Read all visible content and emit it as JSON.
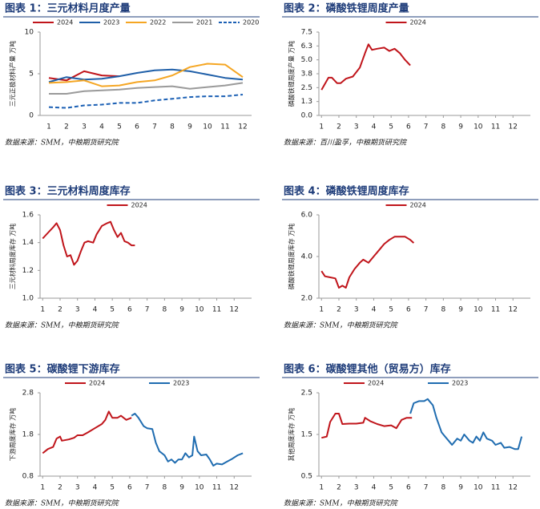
{
  "chart_data": [
    {
      "type": "line",
      "title": "图表 1：三元材料月度产量",
      "y_label": "三元正极材料产量 万吨",
      "source": "数据来源：SMM，中粮期货研究院",
      "legend": "top",
      "categories": [
        "1",
        "2",
        "3",
        "4",
        "5",
        "6",
        "7",
        "8",
        "9",
        "10",
        "11",
        "12"
      ],
      "ylim": [
        0,
        10
      ],
      "yticks": [
        0,
        5,
        10
      ],
      "series": [
        {
          "name": "2024",
          "color": "#c0151b",
          "values": [
            4.5,
            4.2,
            5.3,
            4.8,
            4.7,
            null,
            null,
            null,
            null,
            null,
            null,
            null
          ]
        },
        {
          "name": "2023",
          "color": "#1f5fa8",
          "values": [
            4.0,
            4.6,
            4.3,
            4.4,
            4.7,
            5.1,
            5.4,
            5.5,
            5.3,
            4.9,
            4.5,
            4.3
          ]
        },
        {
          "name": "2022",
          "color": "#f5a623",
          "values": [
            3.9,
            4.0,
            4.2,
            3.5,
            3.6,
            4.0,
            4.2,
            4.8,
            5.8,
            6.2,
            6.1,
            4.6
          ]
        },
        {
          "name": "2021",
          "color": "#9a9a9a",
          "values": [
            2.6,
            2.6,
            2.9,
            3.0,
            3.1,
            3.3,
            3.4,
            3.5,
            3.2,
            3.4,
            3.6,
            3.9
          ]
        },
        {
          "name": "2020",
          "color": "#1a5fb4",
          "style": "dashed",
          "values": [
            1.0,
            0.9,
            1.2,
            1.3,
            1.5,
            1.5,
            1.8,
            2.0,
            2.2,
            2.3,
            2.3,
            2.5
          ]
        }
      ]
    },
    {
      "type": "line",
      "title": "图表 2：磷酸铁锂周度产量",
      "y_label": "磷酸铁锂周度产量 万吨",
      "source": "数据来源：百川盈孚，中粮期货研究院",
      "legend": "top",
      "xlim": [
        0.85,
        13.0
      ],
      "xticks": [
        1,
        2,
        3,
        4,
        5,
        6,
        7,
        8,
        9,
        10,
        11,
        12
      ],
      "ylim": [
        0,
        7.5
      ],
      "yticks": [
        {
          "value": 0,
          "label": "0.0"
        },
        {
          "value": 1.25,
          "label": "1.3"
        },
        2.5,
        {
          "value": 3.75,
          "label": "3.8"
        },
        {
          "value": 5,
          "label": "5.0"
        },
        {
          "value": 6.25,
          "label": "6.3"
        },
        7.5
      ],
      "series": [
        {
          "name": "2024",
          "color": "#c0151b",
          "x": [
            1.0,
            1.4,
            1.6,
            1.9,
            2.1,
            2.4,
            2.8,
            3.2,
            3.5,
            3.7,
            3.9,
            4.2,
            4.6,
            4.9,
            5.2,
            5.5,
            5.8,
            6.1
          ],
          "values": [
            2.3,
            3.4,
            3.4,
            2.9,
            2.9,
            3.3,
            3.5,
            4.3,
            5.6,
            6.4,
            5.9,
            6.0,
            6.1,
            5.8,
            6.0,
            5.6,
            5.0,
            4.5
          ]
        }
      ]
    },
    {
      "type": "line",
      "title": "图表 3：三元材料周度库存",
      "y_label": "三元材料周度库存 万吨",
      "source": "数据来源：SMM，中粮期货研究院",
      "legend": "top",
      "xlim": [
        0.85,
        13.0
      ],
      "xticks": [
        1,
        2,
        3,
        4,
        5,
        6,
        7,
        8,
        9,
        10,
        11,
        12
      ],
      "ylim": [
        1.0,
        1.6
      ],
      "yticks": [
        {
          "value": 1.0,
          "label": "1.0"
        },
        1.2,
        1.4,
        1.6
      ],
      "series": [
        {
          "name": "2024",
          "color": "#c0151b",
          "x": [
            1.0,
            1.3,
            1.6,
            1.8,
            2.0,
            2.2,
            2.4,
            2.6,
            2.8,
            3.0,
            3.2,
            3.4,
            3.6,
            3.9,
            4.1,
            4.4,
            4.7,
            4.9,
            5.1,
            5.3,
            5.5,
            5.7,
            5.9,
            6.1,
            6.3
          ],
          "values": [
            1.43,
            1.47,
            1.51,
            1.54,
            1.49,
            1.38,
            1.3,
            1.31,
            1.24,
            1.27,
            1.34,
            1.4,
            1.41,
            1.4,
            1.46,
            1.52,
            1.54,
            1.55,
            1.49,
            1.44,
            1.47,
            1.41,
            1.4,
            1.38,
            1.38
          ]
        }
      ]
    },
    {
      "type": "line",
      "title": "图表 4：磷酸铁锂周度库存",
      "y_label": "磷酸铁锂周度库存 万吨",
      "source": "数据来源：SMM，中粮期货研究院",
      "legend": "top",
      "xlim": [
        0.85,
        13.0
      ],
      "xticks": [
        1,
        2,
        3,
        4,
        5,
        6,
        7,
        8,
        9,
        10,
        11,
        12
      ],
      "ylim": [
        2.0,
        6.0
      ],
      "yticks": [
        {
          "value": 2,
          "label": "2.0"
        },
        {
          "value": 4,
          "label": "4.0"
        },
        {
          "value": 6,
          "label": "6.0"
        }
      ],
      "series": [
        {
          "name": "2024",
          "color": "#c0151b",
          "x": [
            1.0,
            1.2,
            1.5,
            1.8,
            2.0,
            2.2,
            2.4,
            2.6,
            2.9,
            3.2,
            3.4,
            3.7,
            4.0,
            4.3,
            4.6,
            4.9,
            5.2,
            5.5,
            5.8,
            6.1,
            6.3
          ],
          "values": [
            3.3,
            3.05,
            3.0,
            2.95,
            2.5,
            2.6,
            2.5,
            3.0,
            3.4,
            3.7,
            3.85,
            3.7,
            4.0,
            4.3,
            4.6,
            4.8,
            4.95,
            4.95,
            4.95,
            4.8,
            4.65
          ]
        }
      ]
    },
    {
      "type": "line",
      "title": "图表 5：碳酸锂下游库存",
      "y_label": "下游周度库存 万吨",
      "source": "数据来源：SMM，中粮期货研究院",
      "legend": "top",
      "xlim": [
        0.85,
        13.0
      ],
      "xticks": [
        1,
        2,
        3,
        4,
        5,
        6,
        7,
        8,
        9,
        10,
        11,
        12
      ],
      "ylim": [
        0.8,
        2.8
      ],
      "yticks": [
        0.8,
        1.8,
        2.8
      ],
      "series": [
        {
          "name": "2024",
          "color": "#c0151b",
          "x": [
            1.0,
            1.3,
            1.6,
            1.8,
            2.0,
            2.1,
            2.5,
            2.8,
            3.0,
            3.3,
            3.6,
            4.0,
            4.4,
            4.6,
            4.8,
            5.0,
            5.3,
            5.5,
            5.8,
            6.1
          ],
          "values": [
            1.35,
            1.45,
            1.5,
            1.7,
            1.75,
            1.65,
            1.68,
            1.72,
            1.78,
            1.78,
            1.85,
            1.95,
            2.05,
            2.15,
            2.35,
            2.2,
            2.2,
            2.25,
            2.15,
            2.2
          ]
        },
        {
          "name": "2023",
          "color": "#1f6cb0",
          "x": [
            6.1,
            6.3,
            6.5,
            6.8,
            7.0,
            7.3,
            7.5,
            7.7,
            8.0,
            8.2,
            8.4,
            8.6,
            8.8,
            9.0,
            9.2,
            9.4,
            9.6,
            9.7,
            9.9,
            10.1,
            10.4,
            10.6,
            10.8,
            11.0,
            11.3,
            11.6,
            11.9,
            12.2,
            12.5
          ],
          "values": [
            2.25,
            2.3,
            2.2,
            2.0,
            1.95,
            1.93,
            1.6,
            1.4,
            1.3,
            1.15,
            1.2,
            1.12,
            1.2,
            1.2,
            1.35,
            1.25,
            1.3,
            1.75,
            1.4,
            1.3,
            1.32,
            1.2,
            1.05,
            1.1,
            1.08,
            1.15,
            1.22,
            1.3,
            1.35
          ]
        }
      ]
    },
    {
      "type": "line",
      "title": "图表 6：碳酸锂其他（贸易方）库存",
      "y_label": "其他周度库存 万吨",
      "source": "数据来源：SMM，中粮期货研究院",
      "legend": "top",
      "xlim": [
        0.85,
        13.0
      ],
      "xticks": [
        1,
        2,
        3,
        4,
        5,
        6,
        7,
        8,
        9,
        10,
        11,
        12
      ],
      "ylim": [
        0.5,
        2.5
      ],
      "yticks": [
        0.5,
        1.5,
        2.5
      ],
      "series": [
        {
          "name": "2024",
          "color": "#c0151b",
          "x": [
            1.0,
            1.3,
            1.5,
            1.8,
            2.0,
            2.2,
            2.6,
            3.0,
            3.4,
            3.5,
            3.8,
            4.2,
            4.6,
            5.0,
            5.3,
            5.6,
            5.9,
            6.2
          ],
          "values": [
            1.42,
            1.45,
            1.8,
            2.0,
            2.0,
            1.75,
            1.76,
            1.76,
            1.78,
            1.9,
            1.82,
            1.75,
            1.7,
            1.72,
            1.65,
            1.85,
            1.9,
            1.9
          ]
        },
        {
          "name": "2023",
          "color": "#1f6cb0",
          "x": [
            6.1,
            6.3,
            6.6,
            6.9,
            7.1,
            7.4,
            7.6,
            7.9,
            8.1,
            8.3,
            8.5,
            8.8,
            9.0,
            9.2,
            9.5,
            9.7,
            9.9,
            10.1,
            10.3,
            10.5,
            10.8,
            11.0,
            11.3,
            11.5,
            11.8,
            12.1,
            12.3,
            12.5
          ],
          "values": [
            2.0,
            2.25,
            2.3,
            2.3,
            2.35,
            2.2,
            1.9,
            1.55,
            1.45,
            1.35,
            1.25,
            1.4,
            1.35,
            1.5,
            1.35,
            1.3,
            1.45,
            1.35,
            1.55,
            1.4,
            1.35,
            1.25,
            1.3,
            1.18,
            1.2,
            1.15,
            1.15,
            1.45
          ]
        }
      ]
    }
  ]
}
